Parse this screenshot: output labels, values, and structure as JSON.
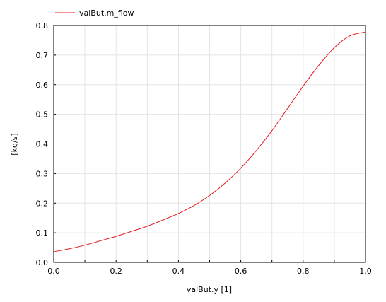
{
  "chart_data": {
    "type": "line",
    "title": "",
    "xlabel": "valBut.y [1]",
    "ylabel": "[kg/s]",
    "xlim": [
      0,
      1
    ],
    "ylim": [
      0,
      0.8
    ],
    "grid": true,
    "legend_position": "top-left",
    "x_ticks": [
      "0.0",
      "0.2",
      "0.4",
      "0.6",
      "0.8",
      "1.0"
    ],
    "y_ticks": [
      "0.0",
      "0.1",
      "0.2",
      "0.3",
      "0.4",
      "0.5",
      "0.6",
      "0.7",
      "0.8"
    ],
    "series": [
      {
        "name": "valBut.m_flow",
        "color": "#e31a1c",
        "x": [
          0,
          0.05,
          0.1,
          0.15,
          0.2,
          0.25,
          0.3,
          0.35,
          0.4,
          0.45,
          0.5,
          0.55,
          0.6,
          0.65,
          0.7,
          0.75,
          0.8,
          0.85,
          0.9,
          0.95,
          1.0
        ],
        "y": [
          0.036,
          0.046,
          0.058,
          0.073,
          0.088,
          0.105,
          0.122,
          0.143,
          0.165,
          0.192,
          0.226,
          0.268,
          0.318,
          0.378,
          0.445,
          0.52,
          0.595,
          0.665,
          0.725,
          0.765,
          0.778
        ]
      }
    ]
  }
}
